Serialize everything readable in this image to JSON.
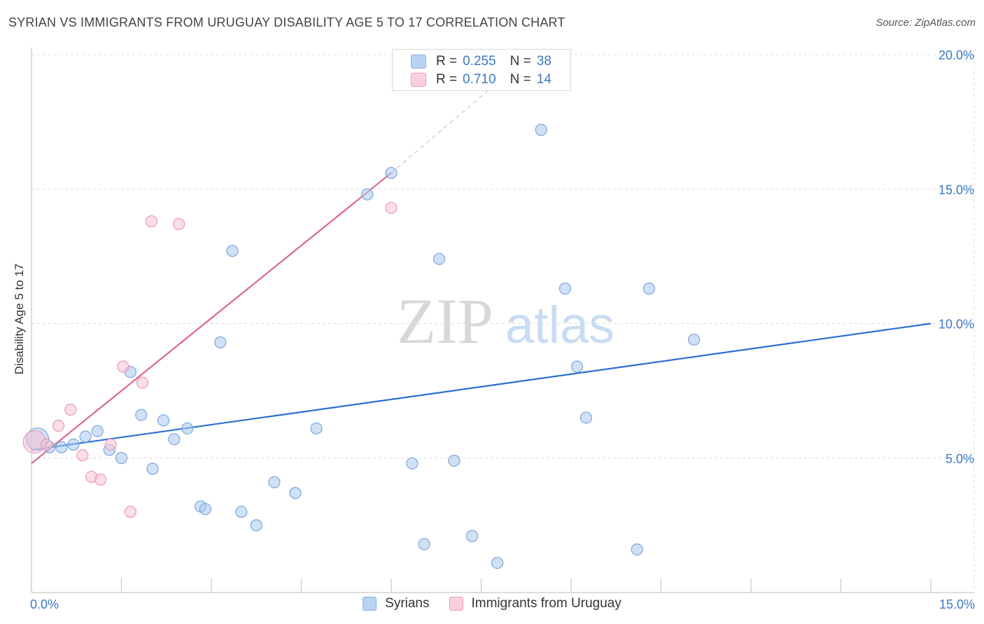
{
  "title": "SYRIAN VS IMMIGRANTS FROM URUGUAY DISABILITY AGE 5 TO 17 CORRELATION CHART",
  "source": "Source: ZipAtlas.com",
  "watermark": {
    "zip": "ZIP",
    "atlas": "atlas"
  },
  "legend_top": {
    "rows": [
      {
        "r_label": "R =",
        "r_value": "0.255",
        "n_label": "N =",
        "n_value": "38",
        "color": "#a9c8ef"
      },
      {
        "r_label": "R =",
        "r_value": "0.710",
        "n_label": "N =",
        "n_value": "14",
        "color": "#f4b9cb"
      }
    ]
  },
  "legend_bottom": [
    {
      "label": "Syrians",
      "color": "#b9d3f3",
      "border": "#8ab0e0"
    },
    {
      "label": "Immigrants from Uruguay",
      "color": "#fbd0dc",
      "border": "#eda0b7"
    }
  ],
  "chart_data": {
    "type": "scatter",
    "title": "SYRIAN VS IMMIGRANTS FROM URUGUAY DISABILITY AGE 5 TO 17 CORRELATION CHART",
    "xlabel": "",
    "ylabel": "Disability Age 5 to 17",
    "xlim": [
      0,
      15
    ],
    "ylim": [
      0,
      20
    ],
    "x_tick_labels": [
      {
        "value": 0,
        "label": "0.0%"
      },
      {
        "value": 15,
        "label": "15.0%"
      }
    ],
    "y_tick_labels": [
      {
        "value": 5,
        "label": "5.0%"
      },
      {
        "value": 10,
        "label": "10.0%"
      },
      {
        "value": 15,
        "label": "15.0%"
      },
      {
        "value": 20,
        "label": "20.0%"
      }
    ],
    "grid": true,
    "legend_position": "top-center",
    "series": [
      {
        "name": "Syrians",
        "color": "#a9c8ef",
        "stroke": "#7aa6dc",
        "line_color": "#2a6fd1",
        "trend": {
          "x": [
            0,
            15
          ],
          "y": [
            5.3,
            10.0
          ]
        },
        "points": [
          {
            "x": 0.1,
            "y": 5.7,
            "big": true
          },
          {
            "x": 0.3,
            "y": 5.4
          },
          {
            "x": 0.5,
            "y": 5.4
          },
          {
            "x": 0.7,
            "y": 5.5
          },
          {
            "x": 0.9,
            "y": 5.8
          },
          {
            "x": 1.1,
            "y": 6.0
          },
          {
            "x": 1.3,
            "y": 5.3
          },
          {
            "x": 1.5,
            "y": 5.0
          },
          {
            "x": 1.65,
            "y": 8.2
          },
          {
            "x": 1.83,
            "y": 6.6
          },
          {
            "x": 2.02,
            "y": 4.6
          },
          {
            "x": 2.2,
            "y": 6.4
          },
          {
            "x": 2.38,
            "y": 5.7
          },
          {
            "x": 2.6,
            "y": 6.1
          },
          {
            "x": 2.82,
            "y": 3.2
          },
          {
            "x": 2.9,
            "y": 3.1
          },
          {
            "x": 3.15,
            "y": 9.3
          },
          {
            "x": 3.35,
            "y": 12.7
          },
          {
            "x": 3.5,
            "y": 3.0
          },
          {
            "x": 3.75,
            "y": 2.5
          },
          {
            "x": 4.05,
            "y": 4.1
          },
          {
            "x": 4.4,
            "y": 3.7
          },
          {
            "x": 4.75,
            "y": 6.1
          },
          {
            "x": 5.6,
            "y": 14.8
          },
          {
            "x": 6.0,
            "y": 15.6
          },
          {
            "x": 6.35,
            "y": 4.8
          },
          {
            "x": 6.55,
            "y": 1.8
          },
          {
            "x": 6.8,
            "y": 12.4
          },
          {
            "x": 7.05,
            "y": 4.9
          },
          {
            "x": 7.35,
            "y": 2.1
          },
          {
            "x": 7.77,
            "y": 1.1
          },
          {
            "x": 8.5,
            "y": 17.2
          },
          {
            "x": 8.9,
            "y": 11.3
          },
          {
            "x": 9.1,
            "y": 8.4
          },
          {
            "x": 9.25,
            "y": 6.5
          },
          {
            "x": 10.1,
            "y": 1.6
          },
          {
            "x": 10.3,
            "y": 11.3
          },
          {
            "x": 11.05,
            "y": 9.4
          }
        ]
      },
      {
        "name": "Immigrants from Uruguay",
        "color": "#f8c3d3",
        "stroke": "#eb9ab3",
        "line_color": "#e0668e",
        "trend": {
          "x": [
            0,
            6.0
          ],
          "y": [
            4.8,
            15.6
          ]
        },
        "trend_extension": {
          "x": [
            6.0,
            7.9
          ],
          "y": [
            15.6,
            19.2
          ]
        },
        "points": [
          {
            "x": 0.05,
            "y": 5.6,
            "big": true
          },
          {
            "x": 0.25,
            "y": 5.5
          },
          {
            "x": 0.45,
            "y": 6.2
          },
          {
            "x": 0.65,
            "y": 6.8
          },
          {
            "x": 0.85,
            "y": 5.1
          },
          {
            "x": 1.0,
            "y": 4.3
          },
          {
            "x": 1.15,
            "y": 4.2
          },
          {
            "x": 1.32,
            "y": 5.5
          },
          {
            "x": 1.53,
            "y": 8.4
          },
          {
            "x": 1.65,
            "y": 3.0
          },
          {
            "x": 1.85,
            "y": 7.8
          },
          {
            "x": 2.0,
            "y": 13.8
          },
          {
            "x": 2.46,
            "y": 13.7
          },
          {
            "x": 6.0,
            "y": 14.3
          }
        ]
      }
    ]
  }
}
